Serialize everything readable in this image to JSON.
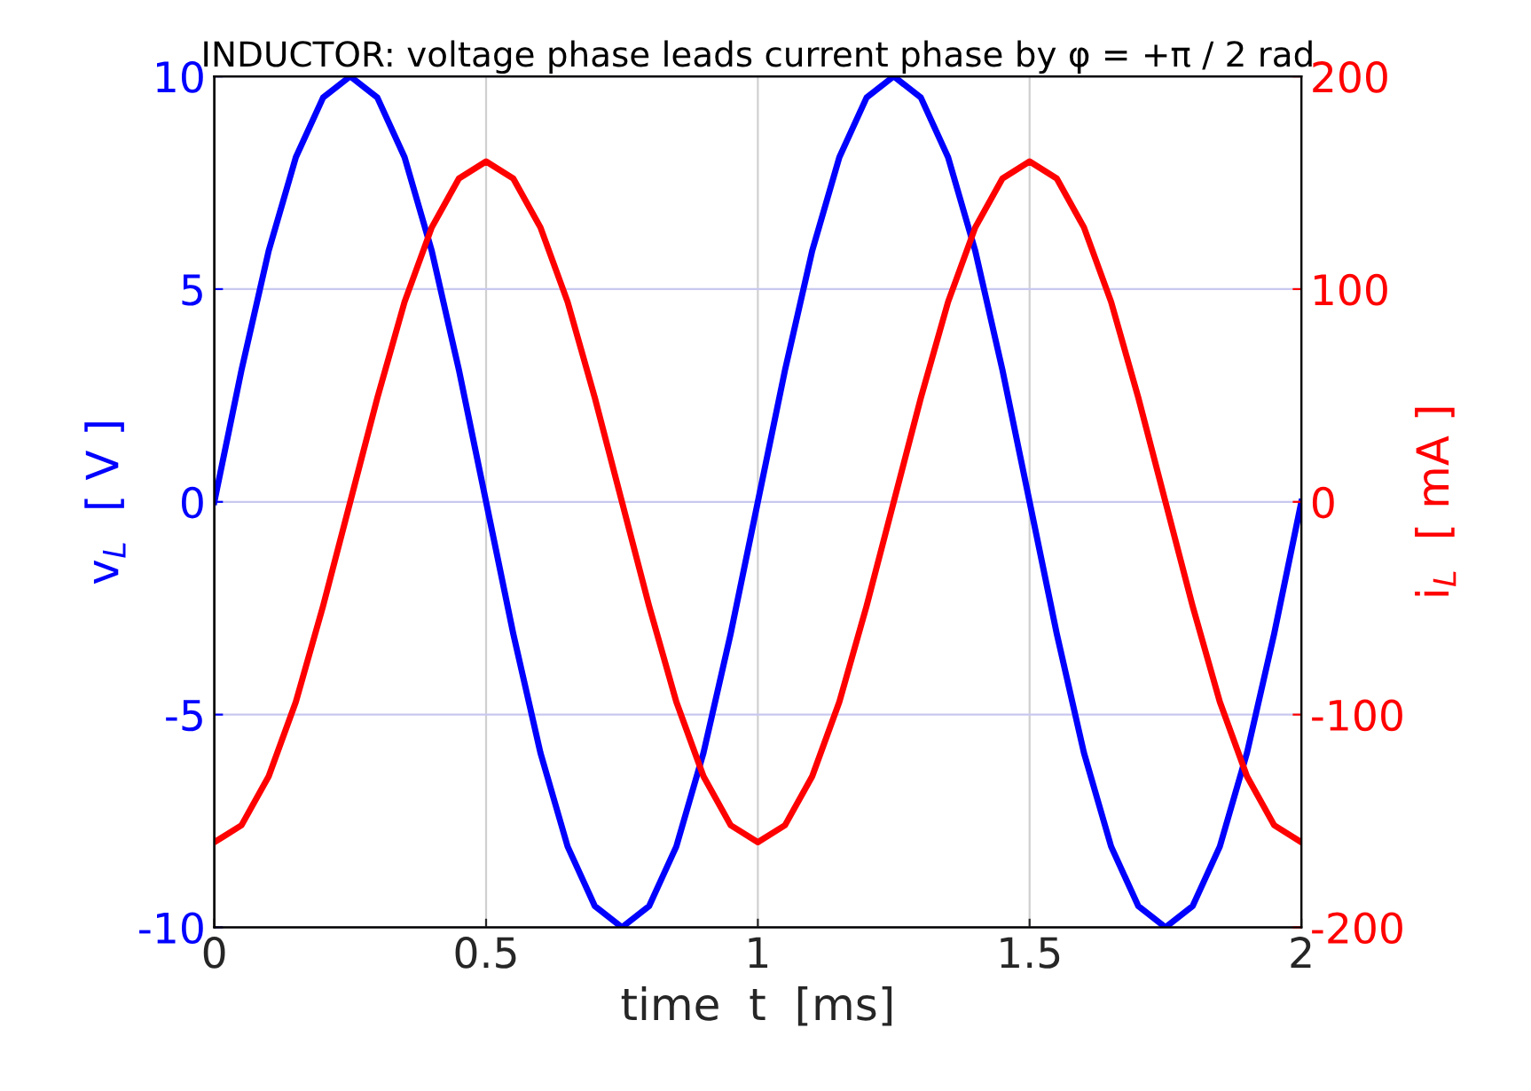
{
  "chart_data": {
    "type": "line",
    "title": "INDUCTOR: voltage phase leads current phase by φ = +π / 2 rad",
    "xlabel": "time  t  [ms]",
    "ylabel": "v$_{L}$  [ V ]",
    "y2label": "i$_{L}$  [ mA ]",
    "x": [
      0,
      0.05,
      0.1,
      0.15,
      0.2,
      0.25,
      0.3,
      0.35,
      0.4,
      0.45,
      0.5,
      0.55,
      0.6,
      0.65,
      0.7,
      0.75,
      0.8,
      0.85,
      0.9,
      0.95,
      1,
      1.05,
      1.1,
      1.15,
      1.2,
      1.25,
      1.3,
      1.35,
      1.4,
      1.45,
      1.5,
      1.55,
      1.6,
      1.65,
      1.7,
      1.75,
      1.8,
      1.85,
      1.9,
      1.95,
      2
    ],
    "series": [
      {
        "color": "#0000ff",
        "axis": "y",
        "values": [
          0,
          3.1,
          5.9,
          8.1,
          9.5,
          10,
          9.5,
          8.1,
          5.9,
          3.1,
          0,
          -3.1,
          -5.9,
          -8.1,
          -9.5,
          -10,
          -9.5,
          -8.1,
          -5.9,
          -3.1,
          0,
          3.1,
          5.9,
          8.1,
          9.5,
          10,
          9.5,
          8.1,
          5.9,
          3.1,
          0,
          -3.1,
          -5.9,
          -8.1,
          -9.5,
          -10,
          -9.5,
          -8.1,
          -5.9,
          -3.1,
          0
        ]
      },
      {
        "color": "#ff0000",
        "axis": "y2",
        "values": [
          -160,
          -152,
          -129,
          -94,
          -49,
          0,
          49,
          94,
          129,
          152,
          160,
          152,
          129,
          94,
          49,
          0,
          -49,
          -94,
          -129,
          -152,
          -160,
          -152,
          -129,
          -94,
          -49,
          0,
          49,
          94,
          129,
          152,
          160,
          152,
          129,
          94,
          49,
          0,
          -49,
          -94,
          -129,
          -152,
          -160
        ]
      }
    ],
    "xlim": [
      0,
      2
    ],
    "xticks": [
      0,
      0.5,
      1,
      1.5,
      2
    ],
    "ylim": [
      -10,
      10
    ],
    "yticks": [
      -10,
      -5,
      0,
      5,
      10
    ],
    "y2lim": [
      -200,
      200
    ],
    "y2ticks": [
      -200,
      -100,
      0,
      100,
      200
    ],
    "grid": true,
    "marker": "none",
    "line_style": "solid",
    "legend": false
  }
}
